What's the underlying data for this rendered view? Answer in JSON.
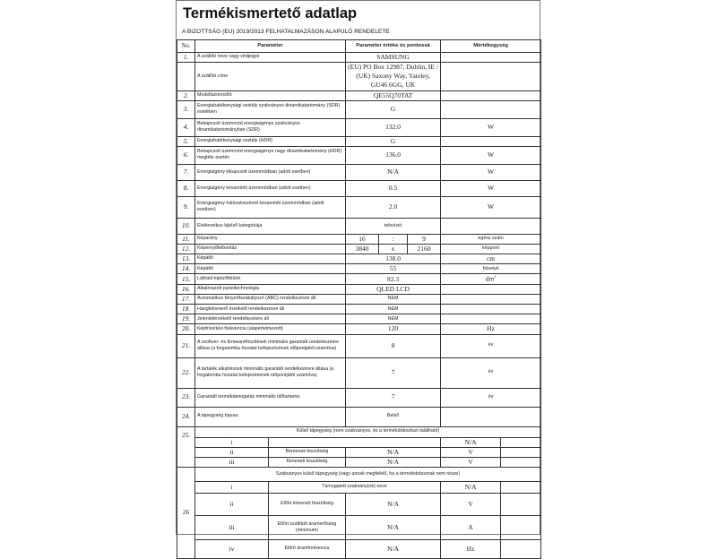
{
  "title": "Termékismertető adatlap",
  "subtitle": "A BIZOTTSÁG (EU) 2019/2013 FELHATALMAZÁSON ALAPULÓ RENDELETE",
  "header": {
    "no": "No.",
    "param": "Paraméter",
    "value": "Paraméter értéke és pontossá",
    "unit": "Mértékegység"
  },
  "rows": [
    {
      "no": "1.",
      "param": "A szállító neve vagy védjegye",
      "value": "SAMSUNG",
      "unit": ""
    },
    {
      "no": "",
      "param": "A szállító címe",
      "value": "(EU) PO Box 12987, Dublin, IE / (UK) Saxony Way, Yateley, GU46 6GG, UK",
      "unit": ""
    },
    {
      "no": "2.",
      "param": "Modellazonosító",
      "value": "QE55Q70TAT",
      "unit": ""
    },
    {
      "no": "3.",
      "param": "Energiahatékonysági osztály szabványos dinamikatartomány (SDR) esetében",
      "value": "G",
      "unit": ""
    },
    {
      "no": "4.",
      "param": "Bekapcsolt üzemmód energiaigénye szabványos dinamikatartományban (SDR)",
      "value": "132.0",
      "unit": "W"
    },
    {
      "no": "5.",
      "param": "Energiahatékonysági osztály (HDR)",
      "value": "G",
      "unit": ""
    },
    {
      "no": "6.",
      "param": "Bekapcsolt üzemmód energiaigénye nagy dinamikatartomány (HDR) megléte esetén",
      "value": "136.0",
      "unit": "W"
    },
    {
      "no": "7.",
      "param": "Energiaigény kikapcsolt üzemmódban (adott esetben)",
      "value": "N/A",
      "unit": "W"
    },
    {
      "no": "8.",
      "param": "Energiaigény készenléti üzemmódban (adott esetben)",
      "value": "0.5",
      "unit": "W"
    },
    {
      "no": "9.",
      "param": "Energiaigény hálózatvezérelt készenléti üzemmódban (adott esetben)",
      "value": "2.0",
      "unit": "W"
    },
    {
      "no": "10.",
      "param": "Elektronikus kijelző kategóriája",
      "value": "televízió",
      "unit": ""
    },
    {
      "no": "11.",
      "param": "Képarány",
      "v1": "16",
      "v2": ":",
      "v3": "9",
      "unit": "egész szám"
    },
    {
      "no": "12.",
      "param": "Képernyőfelbontás",
      "v1": "3840",
      "v2": "x",
      "v3": "2160",
      "unit": "képpont"
    },
    {
      "no": "13.",
      "param": "Képátló",
      "value": "138.0",
      "unit": "cm"
    },
    {
      "no": "14.",
      "param": "Képátló",
      "value": "55",
      "unit": "hüvelyk"
    },
    {
      "no": "15.",
      "param": "Látható kijelzőfelület",
      "value": "82.3",
      "unit": "dm",
      "unit_sup": "2"
    },
    {
      "no": "16.",
      "param": "Alkalmazott paneltechnológia",
      "value": "QLED LCD",
      "unit": ""
    },
    {
      "no": "17.",
      "param": "Automatikus fényerőszabályozó (ABC) rendelkezésre áll",
      "value": "NEM",
      "unit": ""
    },
    {
      "no": "18.",
      "param": "Hangfelismerő érzékelő rendelkezésre áll",
      "value": "NEM",
      "unit": ""
    },
    {
      "no": "19.",
      "param": "Jelenlétérzékelő rendelkezésre áll",
      "value": "NEM",
      "unit": ""
    },
    {
      "no": "20.",
      "param": "Képfrissítési frekvencia (alapértelmezett)",
      "value": "120",
      "unit": "Hz"
    },
    {
      "no": "21.",
      "param": "A szoftver- és firmwarefrissítések minimális garantált rendelkezésre állása (a forgalomba hozatal befejezésének időpontjától számítva)",
      "value": "8",
      "unit": "év"
    },
    {
      "no": "22.",
      "param": "A tartalék alkatrészek minimális garantált rendelkezésre állása (a forgalomba hozatal befejezésének időpontjától számítva)",
      "value": "7",
      "unit": "év"
    },
    {
      "no": "23.",
      "param": "Garantált terméktámogatás minimális időtartama",
      "value": "7",
      "unit": "év"
    },
    {
      "no": "24.",
      "param": "A tápegység típusa:",
      "value": "Belső",
      "unit": ""
    }
  ],
  "section25": {
    "no": "25.",
    "title": "Külső tápegység (nem szabványos, és a termékdobozban található)",
    "rows": [
      {
        "idx": "i",
        "param": "",
        "value": "",
        "unit": "N/A"
      },
      {
        "idx": "ii",
        "param": "Bemeneti feszültség",
        "value": "N/A",
        "unit": "V"
      },
      {
        "idx": "iii",
        "param": "Kimeneti feszültség",
        "value": "N/A",
        "unit": "V"
      }
    ]
  },
  "section26": {
    "no": "26",
    "title": "Szabványos külső tápegység (vagy annak megfelelő, ha a termékdoboznak nem része)",
    "rows": [
      {
        "idx": "i",
        "param": "Támogatott szabvány(ok) neve",
        "value": "",
        "unit": "N/A"
      },
      {
        "idx": "ii",
        "param": "Előírt kimeneti feszültség",
        "value": "N/A",
        "unit": "V"
      },
      {
        "idx": "iii",
        "param": "Előírt szállított áramerősség (minimum)",
        "value": "N/A",
        "unit": "A"
      },
      {
        "idx": "iv",
        "param": "Előírt áramfrekvencia",
        "value": "N/A",
        "unit": "Hz"
      }
    ]
  }
}
